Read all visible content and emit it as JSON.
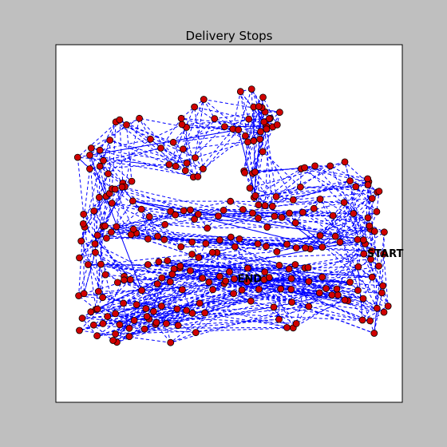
{
  "chart_data": {
    "type": "scatter",
    "title": "Delivery Stops",
    "xlabel": "",
    "ylabel": "",
    "xlim": [
      0,
      100
    ],
    "ylim": [
      0,
      100
    ],
    "grid": false,
    "axis_ticks": false,
    "colors": {
      "stop_fill": "#d00000",
      "route_line": "#0000ff",
      "frame_bg": "#ffffff",
      "page_bg": "#bfbfbf"
    },
    "annotations": [
      {
        "text": "START",
        "x": 88.9,
        "y": 41.5
      },
      {
        "text": "END",
        "x": 51.5,
        "y": 34.5
      }
    ],
    "stops": [
      [
        88.9,
        41.5
      ],
      [
        91.3,
        35.0
      ],
      [
        88.7,
        29.0
      ],
      [
        94.7,
        25.2
      ],
      [
        90.7,
        22.8
      ],
      [
        84.3,
        28.4
      ],
      [
        81.4,
        30.0
      ],
      [
        76.9,
        35.0
      ],
      [
        71.9,
        37.6
      ],
      [
        68.0,
        34.6
      ],
      [
        64.9,
        31.7
      ],
      [
        60.1,
        34.3
      ],
      [
        55.2,
        33.7
      ],
      [
        53.7,
        31.4
      ],
      [
        51.5,
        34.5
      ],
      [
        48.6,
        33.2
      ],
      [
        45.3,
        31.5
      ],
      [
        43.0,
        25.0
      ],
      [
        40.4,
        19.5
      ],
      [
        33.1,
        16.7
      ],
      [
        28.8,
        21.8
      ],
      [
        25.6,
        20.5
      ],
      [
        21.2,
        18.4
      ],
      [
        17.6,
        16.8
      ],
      [
        16.5,
        17.3
      ],
      [
        10.9,
        21.6
      ],
      [
        6.8,
        20.1
      ],
      [
        13.6,
        22.0
      ],
      [
        17.2,
        24.8
      ],
      [
        19.5,
        27.7
      ],
      [
        23.3,
        27.3
      ],
      [
        26.0,
        26.2
      ],
      [
        30.5,
        26.9
      ],
      [
        35.0,
        26.1
      ],
      [
        39.4,
        24.9
      ],
      [
        36.5,
        31.5
      ],
      [
        33.0,
        33.7
      ],
      [
        29.3,
        33.1
      ],
      [
        24.8,
        31.3
      ],
      [
        21.5,
        34.3
      ],
      [
        19.7,
        35.2
      ],
      [
        14.3,
        35.7
      ],
      [
        12.3,
        31.0
      ],
      [
        13.5,
        29.3
      ],
      [
        11.6,
        26.0
      ],
      [
        6.6,
        29.8
      ],
      [
        8.1,
        30.4
      ],
      [
        11.4,
        41.9
      ],
      [
        6.8,
        40.4
      ],
      [
        11.3,
        44.3
      ],
      [
        7.3,
        45.1
      ],
      [
        8.3,
        49.0
      ],
      [
        7.9,
        49.9
      ],
      [
        8.0,
        52.6
      ],
      [
        11.0,
        53.5
      ],
      [
        13.6,
        49.2
      ],
      [
        12.5,
        57.3
      ],
      [
        14.5,
        57.6
      ],
      [
        15.5,
        58.4
      ],
      [
        16.2,
        59.7
      ],
      [
        19.3,
        61.3
      ],
      [
        21.9,
        61.8
      ],
      [
        19.9,
        60.3
      ],
      [
        15.1,
        63.9
      ],
      [
        12.7,
        66.0
      ],
      [
        9.8,
        65.3
      ],
      [
        6.3,
        68.5
      ],
      [
        9.8,
        69.1
      ],
      [
        10.2,
        71.1
      ],
      [
        12.7,
        70.5
      ],
      [
        13.7,
        67.6
      ],
      [
        15.6,
        73.3
      ],
      [
        17.3,
        78.4
      ],
      [
        18.4,
        79.0
      ],
      [
        20.4,
        77.6
      ],
      [
        24.1,
        79.4
      ],
      [
        27.3,
        73.6
      ],
      [
        30.3,
        71.1
      ],
      [
        32.7,
        66.5
      ],
      [
        34.6,
        66.0
      ],
      [
        37.4,
        64.8
      ],
      [
        37.8,
        66.9
      ],
      [
        39.7,
        63.0
      ],
      [
        41.0,
        63.1
      ],
      [
        42.5,
        65.3
      ],
      [
        40.2,
        68.4
      ],
      [
        36.7,
        70.8
      ],
      [
        33.9,
        72.7
      ],
      [
        37.7,
        76.9
      ],
      [
        36.4,
        77.7
      ],
      [
        36.2,
        79.4
      ],
      [
        40.0,
        82.6
      ],
      [
        42.7,
        84.7
      ],
      [
        45.8,
        79.3
      ],
      [
        48.7,
        77.1
      ],
      [
        51.1,
        76.4
      ],
      [
        52.7,
        76.2
      ],
      [
        54.7,
        74.5
      ],
      [
        55.4,
        72.8
      ],
      [
        57.1,
        73.1
      ],
      [
        59.1,
        75.7
      ],
      [
        60.8,
        77.2
      ],
      [
        61.9,
        79.4
      ],
      [
        62.6,
        77.0
      ],
      [
        63.9,
        77.6
      ],
      [
        64.6,
        81.1
      ],
      [
        60.4,
        81.2
      ],
      [
        55.7,
        79.2
      ],
      [
        53.3,
        86.9
      ],
      [
        56.5,
        87.6
      ],
      [
        59.5,
        82.4
      ],
      [
        59.8,
        85.3
      ],
      [
        57.1,
        82.6
      ],
      [
        58.6,
        82.7
      ],
      [
        61.6,
        79.3
      ],
      [
        60.1,
        78.4
      ],
      [
        60.8,
        76.4
      ],
      [
        58.9,
        73.6
      ],
      [
        59.7,
        70.1
      ],
      [
        54.3,
        64.7
      ],
      [
        54.5,
        64.2
      ],
      [
        56.8,
        64.0
      ],
      [
        57.5,
        64.4
      ],
      [
        56.0,
        59.9
      ],
      [
        57.2,
        57.3
      ],
      [
        57.6,
        57.8
      ],
      [
        58.5,
        55.2
      ],
      [
        60.4,
        55.0
      ],
      [
        62.5,
        54.8
      ],
      [
        63.6,
        57.5
      ],
      [
        68.5,
        56.6
      ],
      [
        70.6,
        60.2
      ],
      [
        70.8,
        65.3
      ],
      [
        71.8,
        65.6
      ],
      [
        74.8,
        66.1
      ],
      [
        79.2,
        66.1
      ],
      [
        83.4,
        67.2
      ],
      [
        84.9,
        61.9
      ],
      [
        86.6,
        60.3
      ],
      [
        90.3,
        61.7
      ],
      [
        90.0,
        62.5
      ],
      [
        91.3,
        57.0
      ],
      [
        90.1,
        60.8
      ],
      [
        92.8,
        58.8
      ],
      [
        93.3,
        59.0
      ],
      [
        92.6,
        53.3
      ],
      [
        90.8,
        48.4
      ],
      [
        90.5,
        49.3
      ],
      [
        91.2,
        42.3
      ],
      [
        89.3,
        44.3
      ],
      [
        87.1,
        45.5
      ],
      [
        82.0,
        44.8
      ],
      [
        80.7,
        46.4
      ],
      [
        76.3,
        46.6
      ],
      [
        76.9,
        43.4
      ],
      [
        73.4,
        42.9
      ],
      [
        72.0,
        43.2
      ],
      [
        69.4,
        43.2
      ],
      [
        66.7,
        44.2
      ],
      [
        63.8,
        42.1
      ],
      [
        60.7,
        43.6
      ],
      [
        58.3,
        44.3
      ],
      [
        53.0,
        45.7
      ],
      [
        50.5,
        46.2
      ],
      [
        47.3,
        45.4
      ],
      [
        43.3,
        44.4
      ],
      [
        41.2,
        40.5
      ],
      [
        39.3,
        44.8
      ],
      [
        36.1,
        43.5
      ],
      [
        31.3,
        45.5
      ],
      [
        29.4,
        46.4
      ],
      [
        26.6,
        45.7
      ],
      [
        23.2,
        47.3
      ],
      [
        21.7,
        46.9
      ],
      [
        22.4,
        48.4
      ],
      [
        17.5,
        49.1
      ],
      [
        16.0,
        47.6
      ],
      [
        14.6,
        45.9
      ],
      [
        12.0,
        46.7
      ],
      [
        14.2,
        49.3
      ],
      [
        16.2,
        55.7
      ],
      [
        17.1,
        59.6
      ],
      [
        19.1,
        60.2
      ],
      [
        22.2,
        56.3
      ],
      [
        24.7,
        54.0
      ],
      [
        27.0,
        51.9
      ],
      [
        31.5,
        49.7
      ],
      [
        33.1,
        53.4
      ],
      [
        34.5,
        52.4
      ],
      [
        36.9,
        53.6
      ],
      [
        38.8,
        53.8
      ],
      [
        40.0,
        51.2
      ],
      [
        41.1,
        52.6
      ],
      [
        43.7,
        48.7
      ],
      [
        46.9,
        52.1
      ],
      [
        48.4,
        53.7
      ],
      [
        50.4,
        56.2
      ],
      [
        54.0,
        53.9
      ],
      [
        56.8,
        52.9
      ],
      [
        58.4,
        51.5
      ],
      [
        61.0,
        49.0
      ],
      [
        63.1,
        52.0
      ],
      [
        65.2,
        51.7
      ],
      [
        67.4,
        52.9
      ],
      [
        69.2,
        50.2
      ],
      [
        71.3,
        53.1
      ],
      [
        74.5,
        54.2
      ],
      [
        76.3,
        56.8
      ],
      [
        80.0,
        52.2
      ],
      [
        83.2,
        55.9
      ],
      [
        85.9,
        52.8
      ],
      [
        90.1,
        51.6
      ],
      [
        88.8,
        45.4
      ],
      [
        92.0,
        47.8
      ],
      [
        94.8,
        47.6
      ],
      [
        94.6,
        41.5
      ],
      [
        95.9,
        26.9
      ],
      [
        94.4,
        32.6
      ],
      [
        93.2,
        38.1
      ],
      [
        90.9,
        40.0
      ],
      [
        92.7,
        26.3
      ],
      [
        91.9,
        19.3
      ],
      [
        94.1,
        30.6
      ],
      [
        88.5,
        23.0
      ],
      [
        87.3,
        37.9
      ],
      [
        81.1,
        31.7
      ],
      [
        78.0,
        31.8
      ],
      [
        73.0,
        33.8
      ],
      [
        68.1,
        28.0
      ],
      [
        67.9,
        31.6
      ],
      [
        61.6,
        34.9
      ],
      [
        58.6,
        31.6
      ],
      [
        50.1,
        36.5
      ],
      [
        49.0,
        33.9
      ],
      [
        47.3,
        35.2
      ],
      [
        46.5,
        41.9
      ],
      [
        42.3,
        34.7
      ],
      [
        38.8,
        36.8
      ],
      [
        35.8,
        37.6
      ],
      [
        34.1,
        37.3
      ],
      [
        33.6,
        35.8
      ],
      [
        30.6,
        34.8
      ],
      [
        28.2,
        25.4
      ],
      [
        26.9,
        23.3
      ],
      [
        22.6,
        22.9
      ],
      [
        18.4,
        21.7
      ],
      [
        14.9,
        24.0
      ],
      [
        12.0,
        26.1
      ],
      [
        10.1,
        25.3
      ],
      [
        7.6,
        23.5
      ],
      [
        11.9,
        18.6
      ],
      [
        17.2,
        19.1
      ],
      [
        21.2,
        20.7
      ],
      [
        26.3,
        24.0
      ],
      [
        29.0,
        22.3
      ],
      [
        31.9,
        22.0
      ],
      [
        35.3,
        21.5
      ],
      [
        37.7,
        25.7
      ],
      [
        41.5,
        27.7
      ],
      [
        44.2,
        33.6
      ],
      [
        51.3,
        30.4
      ],
      [
        56.3,
        28.3
      ],
      [
        62.9,
        26.6
      ],
      [
        64.4,
        23.2
      ],
      [
        68.5,
        20.8
      ],
      [
        66.7,
        20.9
      ],
      [
        69.4,
        22.0
      ],
      [
        73.0,
        26.8
      ],
      [
        76.1,
        30.6
      ],
      [
        79.7,
        30.0
      ],
      [
        84.9,
        33.6
      ],
      [
        87.2,
        31.3
      ],
      [
        83.4,
        28.6
      ],
      [
        72.8,
        37.7
      ],
      [
        69.1,
        38.5
      ],
      [
        67.3,
        37.3
      ],
      [
        64.5,
        38.3
      ],
      [
        60.3,
        36.4
      ],
      [
        55.4,
        37.5
      ],
      [
        51.7,
        43.5
      ],
      [
        45.2,
        41.9
      ],
      [
        39.3,
        41.4
      ],
      [
        35.9,
        38.1
      ],
      [
        32.2,
        39.6
      ],
      [
        29.7,
        39.3
      ],
      [
        26.6,
        38.5
      ],
      [
        19.7,
        34.2
      ],
      [
        17.8,
        33.5
      ],
      [
        13.0,
        38.6
      ],
      [
        9.3,
        38.5
      ]
    ]
  }
}
